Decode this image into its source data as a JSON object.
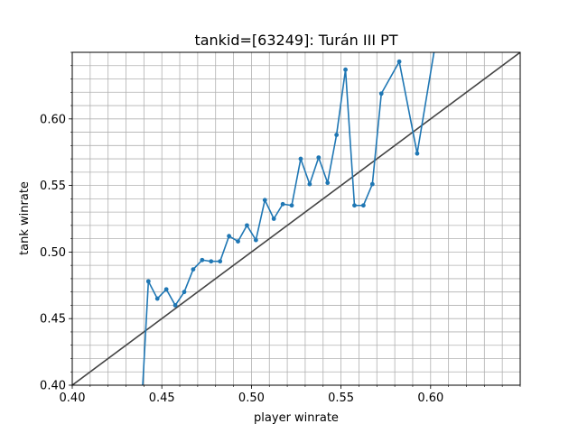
{
  "chart_data": {
    "type": "line",
    "title": "tankid=[63249]: Turán III PT",
    "xlabel": "player winrate",
    "ylabel": "tank winrate",
    "xlim": [
      0.4,
      0.65
    ],
    "ylim": [
      0.4,
      0.65
    ],
    "x_major_ticks": [
      0.4,
      0.45,
      0.5,
      0.55,
      0.6
    ],
    "x_tick_labels": [
      "0.40",
      "0.45",
      "0.50",
      "0.55",
      "0.60"
    ],
    "y_major_ticks": [
      0.4,
      0.45,
      0.5,
      0.55,
      0.6
    ],
    "y_tick_labels": [
      "0.40",
      "0.45",
      "0.50",
      "0.55",
      "0.60"
    ],
    "minor_step": 0.01,
    "grid": true,
    "series": [
      {
        "color": "#1f77b4",
        "x": [
          0.4375,
          0.4425,
          0.4475,
          0.4525,
          0.4575,
          0.4625,
          0.4675,
          0.4725,
          0.4775,
          0.4825,
          0.4875,
          0.4925,
          0.4975,
          0.5025,
          0.5075,
          0.5125,
          0.5175,
          0.5225,
          0.5275,
          0.5325,
          0.5375,
          0.5425,
          0.5475,
          0.5525,
          0.5575,
          0.5625,
          0.5675,
          0.5725,
          0.5825,
          0.5925,
          0.6025
        ],
        "y": [
          0.355,
          0.478,
          0.465,
          0.472,
          0.46,
          0.47,
          0.487,
          0.494,
          0.493,
          0.493,
          0.512,
          0.508,
          0.52,
          0.509,
          0.539,
          0.525,
          0.536,
          0.535,
          0.57,
          0.551,
          0.571,
          0.552,
          0.588,
          0.637,
          0.535,
          0.535,
          0.551,
          0.619,
          0.643,
          0.574,
          0.655
        ]
      }
    ],
    "reference_line": {
      "color": "#444444",
      "x": [
        0.4,
        0.65
      ],
      "y": [
        0.4,
        0.65
      ]
    }
  }
}
